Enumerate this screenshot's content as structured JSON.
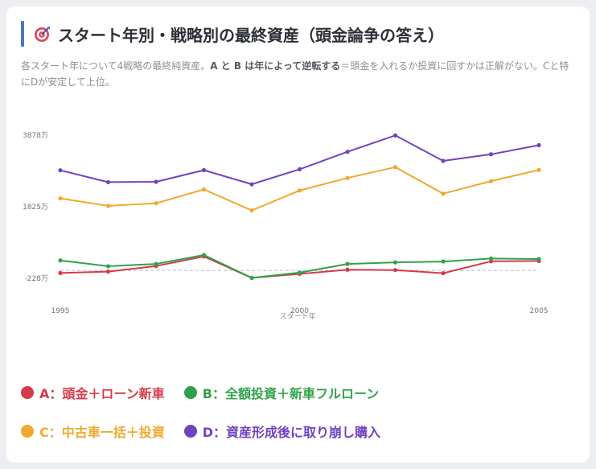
{
  "header": {
    "title": "スタート年別・戦略別の最終資産（頭金論争の答え）",
    "icon": "target-icon"
  },
  "description": {
    "part1": "各スタート年について4戦略の最終純資産。",
    "bold": "A と B は年によって逆転する",
    "part2": "＝頭金を入れるか投資に回すかは正解がない。Cと特にDが安定して上位。"
  },
  "chart_data": {
    "type": "line",
    "x": [
      1995,
      1996,
      1997,
      1998,
      1999,
      2000,
      2001,
      2002,
      2003,
      2004,
      2005
    ],
    "xticks": [
      "1995",
      "2000",
      "2005"
    ],
    "yticks": [
      "-228万",
      "1825万",
      "3878万"
    ],
    "ytick_values": [
      -228,
      1825,
      3878
    ],
    "ylim": [
      -228,
      3878
    ],
    "xlabel": "スタート年",
    "ylabel": "",
    "zero_line": true,
    "series": [
      {
        "key": "A",
        "name": "A：頭金＋ローン新車",
        "color": "#d63a4a",
        "values": [
          -75,
          -35,
          125,
          400,
          -215,
          -100,
          20,
          10,
          -80,
          260,
          270
        ]
      },
      {
        "key": "B",
        "name": "B：全額投資＋新車フルローン",
        "color": "#2fa34a",
        "values": [
          285,
          120,
          185,
          440,
          -215,
          -65,
          185,
          230,
          255,
          340,
          325
        ]
      },
      {
        "key": "C",
        "name": "C：中古車一括＋投資",
        "color": "#f0a830",
        "values": [
          2065,
          1850,
          1925,
          2320,
          1720,
          2290,
          2650,
          2960,
          2200,
          2560,
          2880
        ]
      },
      {
        "key": "D",
        "name": "D：資産形成後に取り崩し購入",
        "color": "#7242c0",
        "values": [
          2870,
          2530,
          2540,
          2875,
          2470,
          2900,
          3400,
          3870,
          3140,
          3330,
          3590
        ]
      }
    ]
  }
}
